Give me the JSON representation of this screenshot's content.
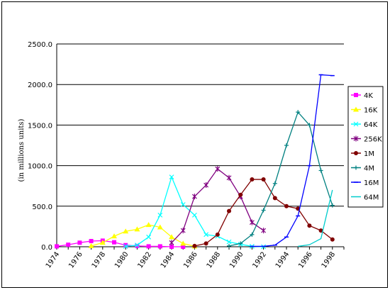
{
  "chart_data": {
    "type": "line",
    "title": "",
    "xlabel": "",
    "ylabel": "(in millions units)",
    "ylim": [
      0,
      2500
    ],
    "yticks": [
      "0.0",
      "500.0",
      "1000.0",
      "1500.0",
      "2000.0",
      "2500.0"
    ],
    "x": [
      1974,
      1975,
      1976,
      1977,
      1978,
      1979,
      1980,
      1981,
      1982,
      1983,
      1984,
      1985,
      1986,
      1987,
      1988,
      1989,
      1990,
      1991,
      1992,
      1993,
      1994,
      1995,
      1996,
      1997,
      1998,
      1999
    ],
    "xtick_labels": [
      "1974",
      "1976",
      "1978",
      "1980",
      "1982",
      "1984",
      "1986",
      "1988",
      "1990",
      "1992",
      "1994",
      "1996",
      "1998"
    ],
    "grid": "horizontal",
    "legend_position": "right",
    "series": [
      {
        "name": "4K",
        "color": "#ff00ff",
        "marker": "square",
        "values": [
          5,
          25,
          50,
          70,
          75,
          55,
          20,
          10,
          5,
          5,
          0,
          0,
          null,
          null,
          null,
          null,
          null,
          null,
          null,
          null,
          null,
          null,
          null,
          null,
          null,
          null
        ]
      },
      {
        "name": "16K",
        "color": "#ffff00",
        "marker": "triangle",
        "values": [
          null,
          null,
          null,
          10,
          50,
          130,
          190,
          215,
          270,
          240,
          120,
          40,
          5,
          null,
          null,
          null,
          null,
          null,
          null,
          null,
          null,
          null,
          null,
          null,
          null,
          null
        ]
      },
      {
        "name": "64K",
        "color": "#00ffff",
        "marker": "x",
        "values": [
          null,
          null,
          null,
          null,
          null,
          null,
          5,
          20,
          120,
          390,
          860,
          520,
          390,
          150,
          130,
          60,
          30,
          5,
          0,
          null,
          null,
          null,
          null,
          null,
          null,
          null
        ]
      },
      {
        "name": "256K",
        "color": "#800080",
        "marker": "star",
        "values": [
          null,
          null,
          null,
          null,
          null,
          null,
          null,
          null,
          null,
          null,
          50,
          200,
          620,
          760,
          960,
          850,
          620,
          300,
          200,
          null,
          null,
          null,
          null,
          null,
          null,
          null
        ]
      },
      {
        "name": "1M",
        "color": "#800000",
        "marker": "circle",
        "values": [
          null,
          null,
          null,
          null,
          null,
          null,
          null,
          null,
          null,
          null,
          null,
          null,
          10,
          40,
          150,
          440,
          640,
          830,
          830,
          600,
          500,
          470,
          260,
          200,
          90,
          null
        ]
      },
      {
        "name": "4M",
        "color": "#008080",
        "marker": "plus",
        "values": [
          null,
          null,
          null,
          null,
          null,
          null,
          null,
          null,
          null,
          null,
          null,
          null,
          null,
          null,
          null,
          10,
          40,
          150,
          450,
          780,
          1250,
          1660,
          1500,
          940,
          510,
          null
        ]
      },
      {
        "name": "16M",
        "color": "#0000ff",
        "marker": "dash",
        "values": [
          null,
          null,
          null,
          null,
          null,
          null,
          null,
          null,
          null,
          null,
          null,
          null,
          null,
          null,
          null,
          null,
          null,
          5,
          5,
          20,
          120,
          380,
          1000,
          2120,
          2110,
          null
        ]
      },
      {
        "name": "64M",
        "color": "#00cccc",
        "marker": "none",
        "values": [
          null,
          null,
          null,
          null,
          null,
          null,
          null,
          null,
          null,
          null,
          null,
          null,
          null,
          null,
          null,
          null,
          null,
          null,
          null,
          null,
          null,
          5,
          25,
          100,
          700,
          null
        ]
      }
    ]
  }
}
